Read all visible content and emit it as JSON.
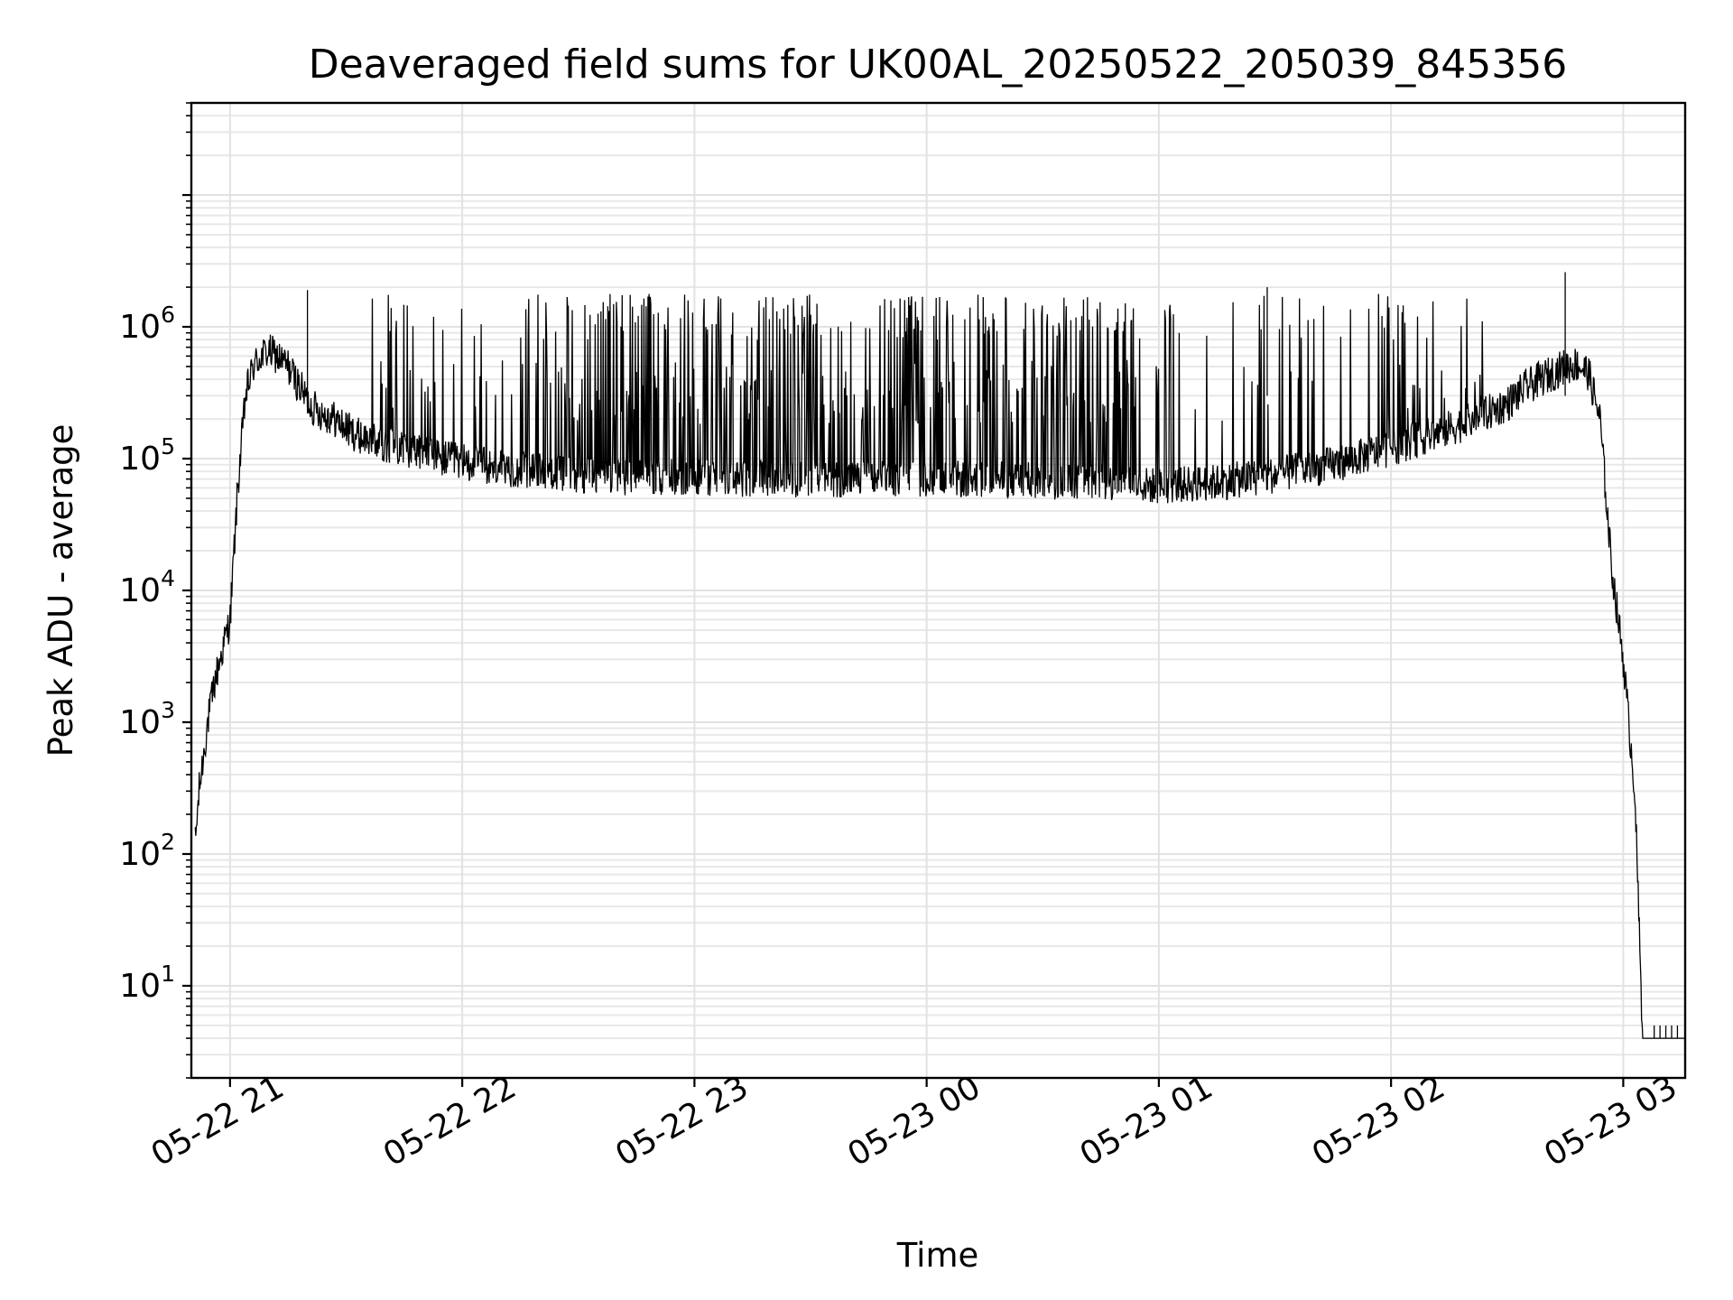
{
  "chart_data": {
    "type": "line",
    "title": "Deaveraged field sums for UK00AL_20250522_205039_845356",
    "xlabel": "Time",
    "ylabel": "Peak ADU - average",
    "yscale": "log",
    "ylim": [
      2,
      50000000
    ],
    "xlim": [
      "2025-05-22 20:50",
      "2025-05-23 03:16"
    ],
    "grid": true,
    "line_color": "#000000",
    "x_ticks": [
      {
        "t": "2025-05-22 21:00",
        "label": "05-22 21"
      },
      {
        "t": "2025-05-22 22:00",
        "label": "05-22 22"
      },
      {
        "t": "2025-05-22 23:00",
        "label": "05-22 23"
      },
      {
        "t": "2025-05-23 00:00",
        "label": "05-23 00"
      },
      {
        "t": "2025-05-23 01:00",
        "label": "05-23 01"
      },
      {
        "t": "2025-05-23 02:00",
        "label": "05-23 02"
      },
      {
        "t": "2025-05-23 03:00",
        "label": "05-23 03"
      }
    ],
    "y_ticks": [
      {
        "value": 10,
        "base": "10",
        "exp": "1"
      },
      {
        "value": 100,
        "base": "10",
        "exp": "2"
      },
      {
        "value": 1000,
        "base": "10",
        "exp": "3"
      },
      {
        "value": 10000,
        "base": "10",
        "exp": "4"
      },
      {
        "value": 100000,
        "base": "10",
        "exp": "5"
      },
      {
        "value": 1000000,
        "base": "10",
        "exp": "6"
      }
    ],
    "series": [
      {
        "x": [
          "2025-05-22 20:51",
          "2025-05-22 20:52",
          "2025-05-22 20:54",
          "2025-05-22 20:56",
          "2025-05-22 20:58",
          "2025-05-22 21:00",
          "2025-05-22 21:02",
          "2025-05-22 21:04",
          "2025-05-22 21:06",
          "2025-05-22 21:08",
          "2025-05-22 21:10",
          "2025-05-22 21:12",
          "2025-05-22 21:15",
          "2025-05-22 21:18",
          "2025-05-22 21:21",
          "2025-05-22 21:24",
          "2025-05-22 21:27",
          "2025-05-22 21:30",
          "2025-05-22 21:33",
          "2025-05-22 21:36",
          "2025-05-22 21:40",
          "2025-05-22 21:45",
          "2025-05-22 21:50",
          "2025-05-22 21:55",
          "2025-05-22 22:00",
          "2025-05-22 22:10",
          "2025-05-22 22:20",
          "2025-05-22 22:30",
          "2025-05-22 22:45",
          "2025-05-22 23:00",
          "2025-05-22 23:15",
          "2025-05-22 23:30",
          "2025-05-22 23:45",
          "2025-05-23 00:00",
          "2025-05-23 00:15",
          "2025-05-23 00:30",
          "2025-05-23 00:45",
          "2025-05-23 01:00",
          "2025-05-23 01:15",
          "2025-05-23 01:30",
          "2025-05-23 01:45",
          "2025-05-23 02:00",
          "2025-05-23 02:10",
          "2025-05-23 02:20",
          "2025-05-23 02:30",
          "2025-05-23 02:35",
          "2025-05-23 02:40",
          "2025-05-23 02:45",
          "2025-05-23 02:48",
          "2025-05-23 02:51",
          "2025-05-23 02:54",
          "2025-05-23 02:57",
          "2025-05-23 03:00",
          "2025-05-23 03:03",
          "2025-05-23 03:05",
          "2025-05-23 03:06",
          "2025-05-23 03:08",
          "2025-05-23 03:12",
          "2025-05-23 03:16"
        ],
        "y": [
          120,
          300,
          900,
          2000,
          3500,
          6000,
          60000,
          300000,
          500000,
          600000,
          650000,
          600000,
          500000,
          350000,
          250000,
          220000,
          200000,
          170000,
          150000,
          140000,
          130000,
          120000,
          110000,
          100000,
          95000,
          85000,
          80000,
          75000,
          72000,
          72000,
          70000,
          70000,
          70000,
          70000,
          70000,
          68000,
          66000,
          62000,
          66000,
          75000,
          90000,
          120000,
          150000,
          190000,
          260000,
          350000,
          420000,
          500000,
          520000,
          450000,
          200000,
          15000,
          3000,
          300,
          4,
          4,
          4,
          4,
          4
        ]
      }
    ]
  }
}
